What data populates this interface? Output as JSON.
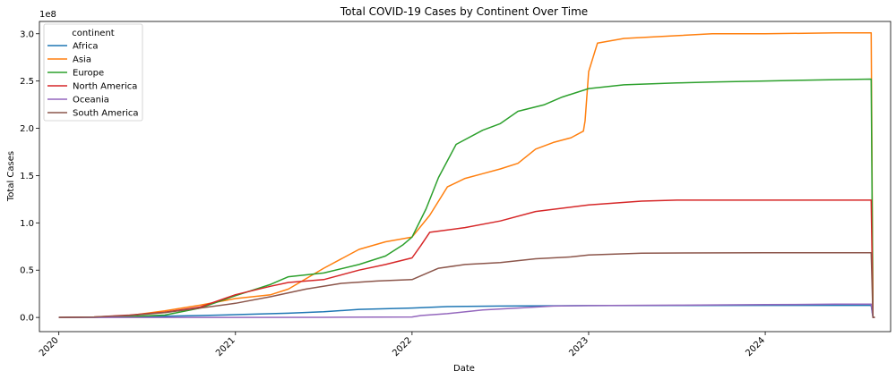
{
  "chart_data": {
    "type": "line",
    "title": "Total COVID-19 Cases by Continent Over Time",
    "xlabel": "Date",
    "ylabel": "Total Cases",
    "y_offset_label": "1e8",
    "xlim": [
      2019.89,
      2024.71
    ],
    "ylim": [
      -0.15,
      3.13
    ],
    "x_ticks": [
      2020,
      2021,
      2022,
      2023,
      2024
    ],
    "x_tick_labels": [
      "2020",
      "2021",
      "2022",
      "2023",
      "2024"
    ],
    "y_ticks": [
      0.0,
      0.5,
      1.0,
      1.5,
      2.0,
      2.5,
      3.0
    ],
    "y_tick_labels": [
      "0.0",
      "0.5",
      "1.0",
      "1.5",
      "2.0",
      "2.5",
      "3.0"
    ],
    "legend": {
      "title": "continent",
      "position": "top-left"
    },
    "series": [
      {
        "name": "Africa",
        "color": "#1f77b4",
        "x": [
          2020.0,
          2020.2,
          2020.5,
          2020.8,
          2021.0,
          2021.3,
          2021.5,
          2021.7,
          2022.0,
          2022.2,
          2022.5,
          2023.0,
          2023.5,
          2024.0,
          2024.4,
          2024.6,
          2024.61,
          2024.62
        ],
        "y": [
          0.0,
          0.001,
          0.01,
          0.02,
          0.03,
          0.045,
          0.06,
          0.085,
          0.1,
          0.115,
          0.12,
          0.125,
          0.127,
          0.128,
          0.128,
          0.128,
          0.0,
          0.0
        ]
      },
      {
        "name": "Asia",
        "color": "#ff7f0e",
        "x": [
          2020.0,
          2020.2,
          2020.4,
          2020.6,
          2020.8,
          2021.0,
          2021.2,
          2021.3,
          2021.5,
          2021.7,
          2021.85,
          2022.0,
          2022.1,
          2022.2,
          2022.3,
          2022.4,
          2022.5,
          2022.6,
          2022.7,
          2022.8,
          2022.9,
          2022.97,
          2022.98,
          2023.0,
          2023.05,
          2023.2,
          2023.5,
          2023.7,
          2024.0,
          2024.4,
          2024.6,
          2024.61,
          2024.62
        ],
        "y": [
          0.0,
          0.001,
          0.02,
          0.07,
          0.13,
          0.2,
          0.24,
          0.3,
          0.52,
          0.72,
          0.8,
          0.85,
          1.08,
          1.38,
          1.47,
          1.52,
          1.57,
          1.63,
          1.78,
          1.85,
          1.9,
          1.97,
          2.08,
          2.6,
          2.9,
          2.95,
          2.98,
          3.0,
          3.0,
          3.01,
          3.01,
          0.0,
          0.0
        ]
      },
      {
        "name": "Europe",
        "color": "#2ca02c",
        "x": [
          2020.0,
          2020.2,
          2020.4,
          2020.6,
          2020.8,
          2021.0,
          2021.2,
          2021.3,
          2021.5,
          2021.7,
          2021.85,
          2021.95,
          2022.0,
          2022.08,
          2022.15,
          2022.25,
          2022.4,
          2022.5,
          2022.6,
          2022.75,
          2022.85,
          2023.0,
          2023.2,
          2023.5,
          2023.7,
          2024.0,
          2024.4,
          2024.6,
          2024.61,
          2024.62
        ],
        "y": [
          0.0,
          0.002,
          0.01,
          0.025,
          0.1,
          0.23,
          0.35,
          0.43,
          0.47,
          0.56,
          0.65,
          0.77,
          0.85,
          1.15,
          1.48,
          1.83,
          1.98,
          2.05,
          2.18,
          2.25,
          2.33,
          2.42,
          2.46,
          2.48,
          2.49,
          2.5,
          2.515,
          2.52,
          0.0,
          0.0
        ]
      },
      {
        "name": "North America",
        "color": "#d62728",
        "x": [
          2020.0,
          2020.2,
          2020.4,
          2020.6,
          2020.8,
          2021.0,
          2021.2,
          2021.3,
          2021.5,
          2021.7,
          2021.85,
          2022.0,
          2022.05,
          2022.1,
          2022.3,
          2022.5,
          2022.7,
          2023.0,
          2023.3,
          2023.5,
          2024.0,
          2024.4,
          2024.6,
          2024.61,
          2024.62
        ],
        "y": [
          0.0,
          0.005,
          0.025,
          0.055,
          0.11,
          0.24,
          0.33,
          0.37,
          0.4,
          0.5,
          0.56,
          0.63,
          0.76,
          0.9,
          0.95,
          1.02,
          1.12,
          1.19,
          1.23,
          1.24,
          1.24,
          1.24,
          1.24,
          0.0,
          0.0
        ]
      },
      {
        "name": "Oceania",
        "color": "#9467bd",
        "x": [
          2020.0,
          2020.5,
          2021.0,
          2021.5,
          2022.0,
          2022.05,
          2022.2,
          2022.4,
          2022.6,
          2022.8,
          2023.0,
          2023.5,
          2024.0,
          2024.4,
          2024.6,
          2024.61,
          2024.62
        ],
        "y": [
          0.0,
          0.0,
          0.0,
          0.001,
          0.005,
          0.02,
          0.04,
          0.08,
          0.1,
          0.12,
          0.125,
          0.13,
          0.135,
          0.14,
          0.14,
          0.0,
          0.0
        ]
      },
      {
        "name": "South America",
        "color": "#8c564b",
        "x": [
          2020.0,
          2020.2,
          2020.4,
          2020.6,
          2020.8,
          2021.0,
          2021.2,
          2021.4,
          2021.6,
          2021.8,
          2022.0,
          2022.05,
          2022.15,
          2022.3,
          2022.5,
          2022.7,
          2022.9,
          2023.0,
          2023.3,
          2024.0,
          2024.4,
          2024.6,
          2024.61,
          2024.62
        ],
        "y": [
          0.0,
          0.005,
          0.02,
          0.05,
          0.1,
          0.15,
          0.22,
          0.3,
          0.36,
          0.385,
          0.4,
          0.44,
          0.52,
          0.56,
          0.58,
          0.62,
          0.64,
          0.66,
          0.68,
          0.685,
          0.685,
          0.685,
          0.0,
          0.0
        ]
      }
    ]
  }
}
